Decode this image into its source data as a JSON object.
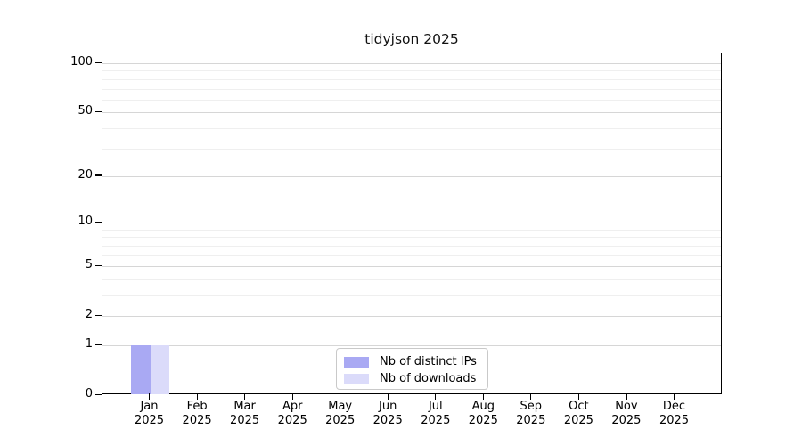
{
  "chart_data": {
    "type": "bar",
    "title": "tidyjson 2025",
    "x": {
      "categories": [
        "Jan",
        "Feb",
        "Mar",
        "Apr",
        "May",
        "Jun",
        "Jul",
        "Aug",
        "Sep",
        "Oct",
        "Nov",
        "Dec"
      ],
      "year_label": "2025"
    },
    "y_axis": {
      "scale": "log1p",
      "tick_labels": [
        0,
        1,
        2,
        5,
        10,
        20,
        50,
        100
      ],
      "minor_gridlines": [
        3,
        4,
        6,
        7,
        8,
        9,
        30,
        40,
        60,
        70,
        80,
        90
      ],
      "max": 100
    },
    "series": [
      {
        "name": "Nb of distinct IPs",
        "color": "#a9a9f3",
        "values": [
          1,
          0,
          0,
          0,
          0,
          0,
          0,
          0,
          0,
          0,
          0,
          0
        ]
      },
      {
        "name": "Nb of downloads",
        "color": "#dbdbfa",
        "values": [
          1,
          0,
          0,
          0,
          0,
          0,
          0,
          0,
          0,
          0,
          0,
          0
        ]
      }
    ],
    "legend": {
      "position": "bottom-center",
      "entries": [
        "Nb of distinct IPs",
        "Nb of downloads"
      ]
    },
    "grid": "horizontal",
    "colors": {
      "axis": "#000000",
      "grid_major": "#d6d6d6",
      "grid_minor": "#efefef",
      "background": "#ffffff"
    }
  }
}
